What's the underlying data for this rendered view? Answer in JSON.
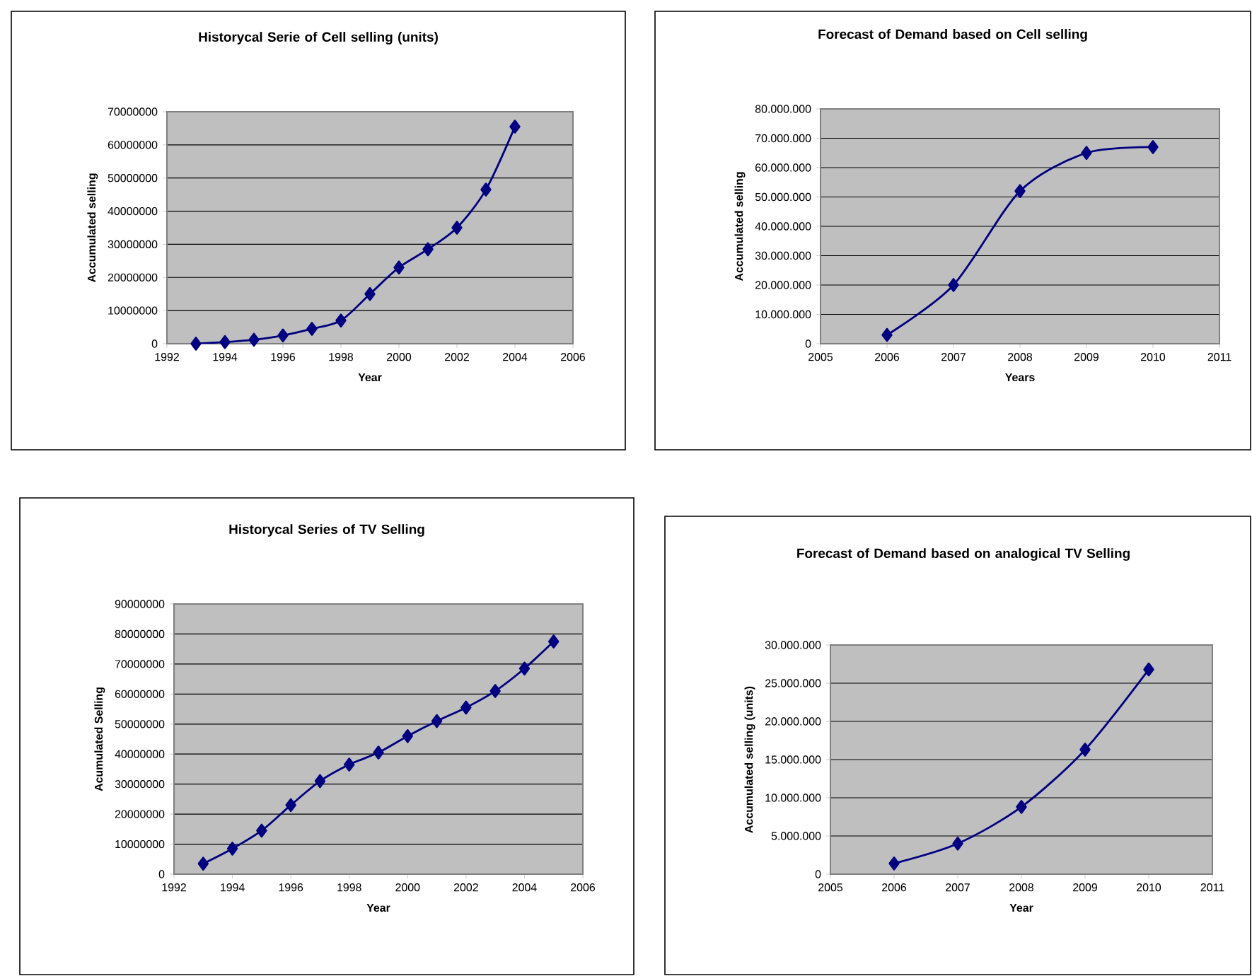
{
  "chart_data": [
    {
      "type": "line",
      "title": "Historycal Serie of Cell selling (units)",
      "xlabel": "Year",
      "ylabel": "Accumulated selling",
      "x": [
        1993,
        1994,
        1995,
        1996,
        1997,
        1998,
        1999,
        2000,
        2001,
        2002,
        2003,
        2004
      ],
      "series": [
        {
          "color": "#000080",
          "values": [
            0,
            500000,
            1200000,
            2500000,
            4500000,
            7000000,
            15000000,
            23000000,
            28500000,
            35000000,
            46500000,
            65500000
          ]
        }
      ],
      "xlim": [
        1992,
        2006
      ],
      "xticks": [
        1992,
        1994,
        1996,
        1998,
        2000,
        2002,
        2004,
        2006
      ],
      "ylim": [
        0,
        70000000
      ],
      "yticks": [
        0,
        10000000,
        20000000,
        30000000,
        40000000,
        50000000,
        60000000,
        70000000
      ],
      "grid": "y",
      "marker": "diamond",
      "line_style": "solid"
    },
    {
      "type": "line",
      "title": "Forecast of Demand based on Cell selling",
      "xlabel": "Years",
      "ylabel": "Accumulated selling",
      "x": [
        2006,
        2007,
        2008,
        2009,
        2010
      ],
      "series": [
        {
          "color": "#000080",
          "values": [
            3000000,
            20000000,
            52000000,
            65000000,
            67000000
          ]
        }
      ],
      "xlim": [
        2005,
        2011
      ],
      "xticks": [
        2005,
        2006,
        2007,
        2008,
        2009,
        2010,
        2011
      ],
      "ylim": [
        0,
        80000000
      ],
      "yticks": [
        0,
        {
          "value": 10000000,
          "label": "10.000.000"
        },
        {
          "value": 20000000,
          "label": "20.000.000"
        },
        {
          "value": 30000000,
          "label": "30.000.000"
        },
        {
          "value": 40000000,
          "label": "40.000.000"
        },
        {
          "value": 50000000,
          "label": "50.000.000"
        },
        {
          "value": 60000000,
          "label": "60.000.000"
        },
        {
          "value": 70000000,
          "label": "70.000.000"
        },
        {
          "value": 80000000,
          "label": "80.000.000"
        }
      ],
      "grid": "y",
      "marker": "diamond",
      "line_style": "solid"
    },
    {
      "type": "line",
      "title": "Historycal Series of TV Selling",
      "xlabel": "Year",
      "ylabel": "Acumulated Selling",
      "x": [
        1993,
        1994,
        1995,
        1996,
        1997,
        1998,
        1999,
        2000,
        2001,
        2002,
        2003,
        2004,
        2005
      ],
      "series": [
        {
          "color": "#000080",
          "values": [
            3500000,
            8500000,
            14500000,
            23000000,
            31000000,
            36500000,
            40500000,
            46000000,
            51000000,
            55500000,
            61000000,
            68500000,
            77500000
          ]
        }
      ],
      "xlim": [
        1992,
        2006
      ],
      "xticks": [
        1992,
        1994,
        1996,
        1998,
        2000,
        2002,
        2004,
        2006
      ],
      "ylim": [
        0,
        90000000
      ],
      "yticks": [
        0,
        10000000,
        20000000,
        30000000,
        40000000,
        50000000,
        60000000,
        70000000,
        80000000,
        90000000
      ],
      "grid": "y",
      "marker": "diamond",
      "line_style": "solid"
    },
    {
      "type": "line",
      "title": "Forecast of Demand based on analogical TV Selling",
      "xlabel": "Year",
      "ylabel": "Accumulated selling (units)",
      "x": [
        2006,
        2007,
        2008,
        2009,
        2010
      ],
      "series": [
        {
          "color": "#000080",
          "values": [
            1400000,
            4000000,
            8800000,
            16300000,
            26800000
          ]
        }
      ],
      "xlim": [
        2005,
        2011
      ],
      "xticks": [
        2005,
        2006,
        2007,
        2008,
        2009,
        2010,
        2011
      ],
      "ylim": [
        0,
        30000000
      ],
      "yticks": [
        0,
        {
          "value": 5000000,
          "label": "5.000.000"
        },
        {
          "value": 10000000,
          "label": "10.000.000"
        },
        {
          "value": 15000000,
          "label": "15.000.000"
        },
        {
          "value": 20000000,
          "label": "20.000.000"
        },
        {
          "value": 25000000,
          "label": "25.000.000"
        },
        {
          "value": 30000000,
          "label": "30.000.000"
        }
      ],
      "grid": "y",
      "marker": "diamond",
      "line_style": "solid"
    }
  ]
}
